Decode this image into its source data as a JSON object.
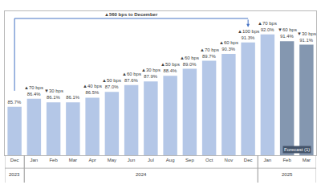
{
  "chart_data": {
    "type": "bar",
    "categories": [
      "Dec",
      "Jan",
      "Feb",
      "Mar",
      "Apr",
      "May",
      "Jun",
      "Jul",
      "Aug",
      "Sep",
      "Oct",
      "Nov",
      "Dec",
      "Jan",
      "Feb",
      "Mar"
    ],
    "years": [
      "2023",
      "2024",
      "2024",
      "2024",
      "2024",
      "2024",
      "2024",
      "2024",
      "2024",
      "2024",
      "2024",
      "2024",
      "2024",
      "2025",
      "2025",
      "2025"
    ],
    "values": [
      85.7,
      86.4,
      86.1,
      86.1,
      86.5,
      87.0,
      87.6,
      87.9,
      88.4,
      89.0,
      89.7,
      90.3,
      91.3,
      92.0,
      91.4,
      91.1
    ],
    "value_labels": [
      "85.7%",
      "86.4%",
      "86.1%",
      "86.1%",
      "86.5%",
      "87.0%",
      "87.6%",
      "87.9%",
      "88.4%",
      "89.0%",
      "89.7%",
      "90.3%",
      "91.3%",
      "92.0%",
      "91.4%",
      "91.1%"
    ],
    "changes": [
      null,
      "▲70 bps",
      "▼30 bps",
      null,
      "▲40 bps",
      "▲50 bps",
      "▲60 bps",
      "▲30 bps",
      "▲50 bps",
      "▲60 bps",
      "▲70 bps",
      "▲60 bps",
      "▲100 bps",
      "▲70 bps",
      "▼60 bps",
      "▼30 bps"
    ],
    "colors": [
      "#b4c7e7",
      "#b4c7e7",
      "#b4c7e7",
      "#b4c7e7",
      "#b4c7e7",
      "#b4c7e7",
      "#b4c7e7",
      "#b4c7e7",
      "#b4c7e7",
      "#b4c7e7",
      "#b4c7e7",
      "#b4c7e7",
      "#b4c7e7",
      "#b4c7e7",
      "#8497b0",
      "#8497b0"
    ],
    "ylim": [
      81.5,
      94
    ],
    "data_labels": true,
    "tick_labels": "x",
    "annotations": [
      {
        "text": "▲560 bps to December",
        "from": 0,
        "to": 12
      },
      {
        "text": "Forecast (1)",
        "from": 14,
        "to": 15
      }
    ]
  }
}
